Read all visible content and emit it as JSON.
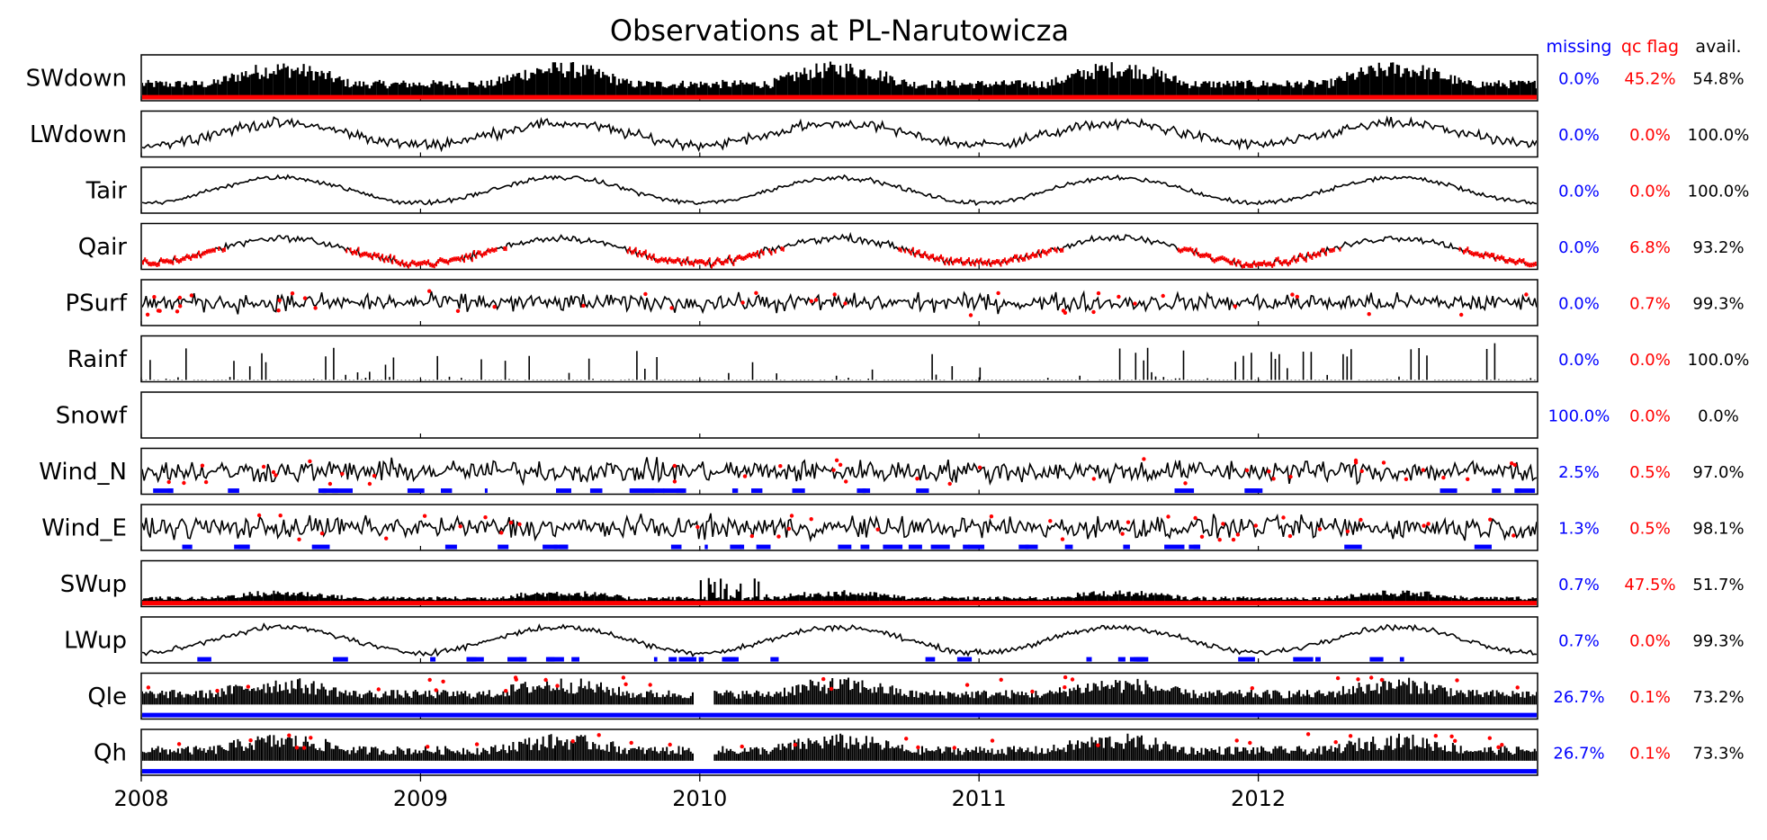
{
  "chart_data": {
    "type": "line",
    "title": "Observations at PL-Narutowicza",
    "x_ticks": [
      "2008",
      "2009",
      "2010",
      "2011",
      "2012"
    ],
    "x_range": [
      "2008-01-01",
      "2012-12-31"
    ],
    "stat_headers": {
      "missing": "missing",
      "qc_flag": "qc flag",
      "available": "avail."
    },
    "colors": {
      "data": "#000000",
      "qc_flag": "#ff0000",
      "missing": "#0000ff",
      "available": "#000000"
    },
    "rows": [
      {
        "label": "SWdown",
        "missing": "0.0%",
        "qc_flag": "45.2%",
        "available": "54.8%"
      },
      {
        "label": "LWdown",
        "missing": "0.0%",
        "qc_flag": "0.0%",
        "available": "100.0%"
      },
      {
        "label": "Tair",
        "missing": "0.0%",
        "qc_flag": "0.0%",
        "available": "100.0%"
      },
      {
        "label": "Qair",
        "missing": "0.0%",
        "qc_flag": "6.8%",
        "available": "93.2%"
      },
      {
        "label": "PSurf",
        "missing": "0.0%",
        "qc_flag": "0.7%",
        "available": "99.3%"
      },
      {
        "label": "Rainf",
        "missing": "0.0%",
        "qc_flag": "0.0%",
        "available": "100.0%"
      },
      {
        "label": "Snowf",
        "missing": "100.0%",
        "qc_flag": "0.0%",
        "available": "0.0%"
      },
      {
        "label": "Wind_N",
        "missing": "2.5%",
        "qc_flag": "0.5%",
        "available": "97.0%"
      },
      {
        "label": "Wind_E",
        "missing": "1.3%",
        "qc_flag": "0.5%",
        "available": "98.1%"
      },
      {
        "label": "SWup",
        "missing": "0.7%",
        "qc_flag": "47.5%",
        "available": "51.7%"
      },
      {
        "label": "LWup",
        "missing": "0.7%",
        "qc_flag": "0.0%",
        "available": "99.3%"
      },
      {
        "label": "Qle",
        "missing": "26.7%",
        "qc_flag": "0.1%",
        "available": "73.2%"
      },
      {
        "label": "Qh",
        "missing": "26.7%",
        "qc_flag": "0.1%",
        "available": "73.3%"
      }
    ]
  }
}
